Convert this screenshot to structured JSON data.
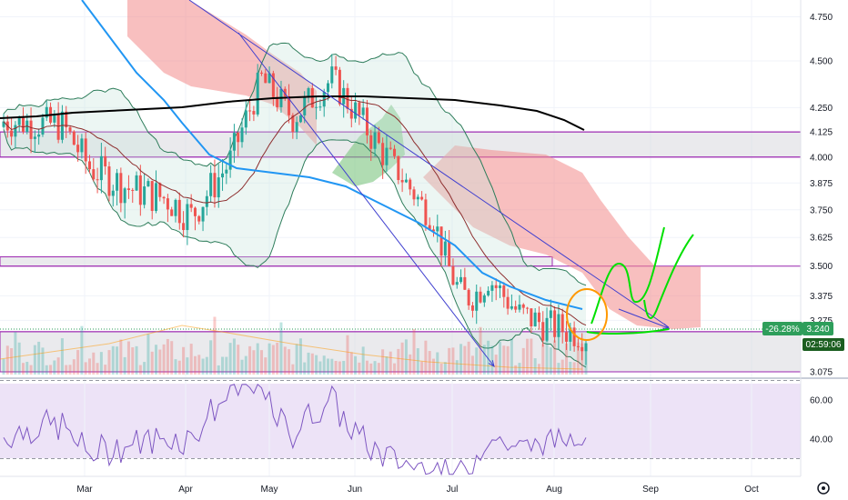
{
  "chart_data": {
    "type": "candlestick",
    "title": "",
    "y_scale": "log",
    "price_axis": {
      "ticks": [
        "4.750",
        "4.500",
        "4.250",
        "4.125",
        "4.000",
        "3.875",
        "3.750",
        "3.625",
        "3.500",
        "3.375",
        "3.275",
        "3.075"
      ],
      "ylim": [
        3.05,
        4.85
      ]
    },
    "time_axis": {
      "labels": [
        "Mar",
        "Apr",
        "May",
        "Jun",
        "Jul",
        "Aug",
        "Sep",
        "Oct"
      ]
    },
    "last_price": {
      "change_label": "-26.28%",
      "price_label": "3.240",
      "countdown": "02:59:06"
    },
    "horizontal_levels": [
      4.125,
      4.0,
      3.5,
      3.23
    ],
    "support_zones": [
      {
        "from": 4.0,
        "to": 4.125
      },
      {
        "from": 3.5,
        "to": 3.54
      },
      {
        "from": 3.075,
        "to": 3.23
      }
    ],
    "moving_average_200_end": 4.13,
    "rsi": {
      "ticks": [
        "60.00",
        "40.00"
      ],
      "ylim": [
        25,
        78
      ],
      "upper_band": 70,
      "lower_band": 30
    },
    "colors": {
      "up": "#26a69a",
      "down": "#ef5350",
      "ma_fast": "#2196f3",
      "ma_slow": "#000000",
      "basis": "#8d2d2d",
      "bollinger": "#2e7d5b",
      "level": "#9c27b0",
      "trendline": "#3f3fcf",
      "projection": "#00e000",
      "circle": "#ff9800",
      "cloud_bear": "#f28b8b",
      "cloud_bull": "#7bc47f",
      "rsi": "#7e57c2",
      "badge_change": "#2e9e5b",
      "badge_countdown": "#1b5e20"
    }
  }
}
